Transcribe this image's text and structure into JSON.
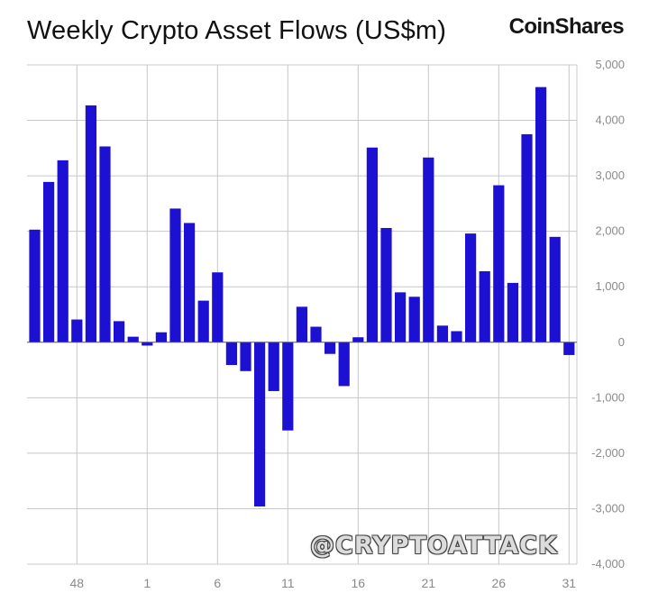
{
  "title": "Weekly Crypto Asset Flows (US$m)",
  "brand": "CoinShares",
  "watermark": "@CRYPTOATTACK",
  "colors": {
    "bar": "#1c10d2",
    "grid": "#c8c8c8",
    "tick_text": "#8a8a8a",
    "zero_line": "#555555"
  },
  "chart_data": {
    "type": "bar",
    "ylim": [
      -4000,
      5000
    ],
    "y_ticks": [
      5000,
      4000,
      3000,
      2000,
      1000,
      0,
      -1000,
      -2000,
      -3000,
      -4000
    ],
    "y_tick_labels": [
      "5,000",
      "4,000",
      "3,000",
      "2,000",
      "1,000",
      "0",
      "-1,000",
      "-2,000",
      "-3,000",
      "-4,000"
    ],
    "y_axis_position": "right",
    "grid": true,
    "x_tick_labels": [
      {
        "index": 3,
        "label": "48"
      },
      {
        "index": 8,
        "label": "1"
      },
      {
        "index": 13,
        "label": "6"
      },
      {
        "index": 18,
        "label": "11"
      },
      {
        "index": 23,
        "label": "16"
      },
      {
        "index": 28,
        "label": "21"
      },
      {
        "index": 33,
        "label": "26"
      },
      {
        "index": 38,
        "label": "31"
      }
    ],
    "values": [
      2030,
      2890,
      3280,
      410,
      4270,
      3530,
      380,
      100,
      -60,
      180,
      2410,
      2150,
      750,
      1260,
      -410,
      -520,
      -2960,
      -880,
      -1590,
      640,
      280,
      -210,
      -790,
      90,
      3510,
      2060,
      900,
      820,
      3330,
      300,
      200,
      1960,
      1280,
      2830,
      1070,
      3750,
      4600,
      1900,
      -230
    ]
  }
}
